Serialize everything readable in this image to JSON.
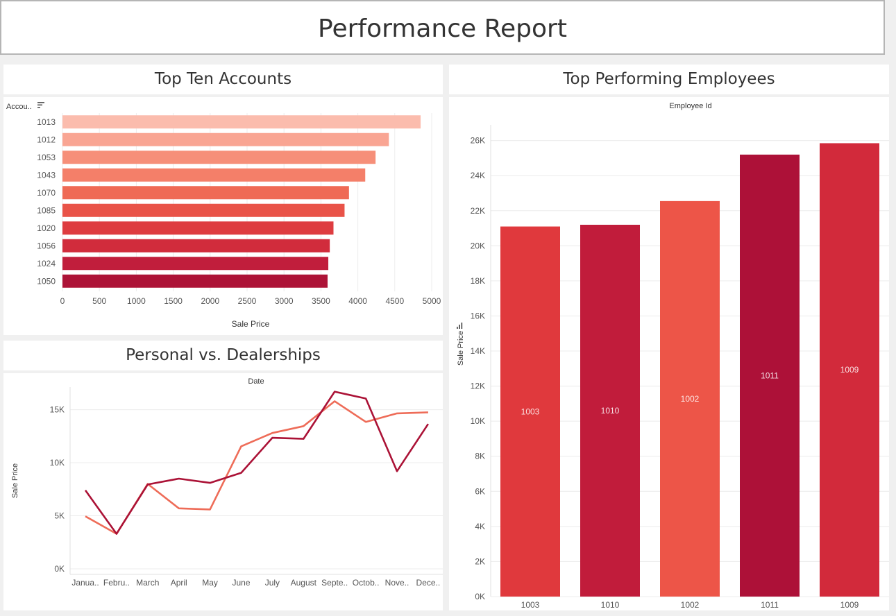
{
  "page_title": "Performance Report",
  "colors": {
    "ten_accounts": [
      "#fbbcad",
      "#f9a593",
      "#f68f79",
      "#f47f69",
      "#ef6a55",
      "#e95348",
      "#de3c40",
      "#d12c3c",
      "#c11e3c",
      "#ad1337"
    ],
    "employees": [
      "#e0393d",
      "#c11c3b",
      "#ed5548",
      "#ad1138",
      "#d22a3b"
    ],
    "line_personal": "#ee6c58",
    "line_dealership": "#ab1236",
    "grid": "#ececec"
  },
  "panels": {
    "top_accounts": {
      "title": "Top Ten Accounts",
      "row_header": "Accou.."
    },
    "personal_dealer": {
      "title": "Personal vs. Dealerships",
      "column_header": "Date"
    },
    "top_employees": {
      "title": "Top Performing Employees",
      "column_header": "Employee Id"
    }
  },
  "chart_data": [
    {
      "id": "top_accounts",
      "type": "bar",
      "orientation": "horizontal",
      "title": "Top Ten Accounts",
      "xlabel": "Sale Price",
      "ylabel": "Accou..",
      "categories": [
        "1013",
        "1012",
        "1053",
        "1043",
        "1070",
        "1085",
        "1020",
        "1056",
        "1024",
        "1050"
      ],
      "values": [
        4850,
        4420,
        4240,
        4100,
        3880,
        3820,
        3670,
        3620,
        3600,
        3590
      ],
      "xlim": [
        0,
        5000
      ],
      "xticks": [
        0,
        500,
        1000,
        1500,
        2000,
        2500,
        3000,
        3500,
        4000,
        4500,
        5000
      ],
      "grid": true
    },
    {
      "id": "personal_dealer",
      "type": "line",
      "title": "Personal vs. Dealerships",
      "xlabel": "Date",
      "ylabel": "Sale Price",
      "categories": [
        "Janua..",
        "Febru..",
        "March",
        "April",
        "May",
        "June",
        "July",
        "August",
        "Septe..",
        "Octob..",
        "Nove..",
        "Dece.."
      ],
      "ylim": [
        0,
        17000
      ],
      "yticks": [
        {
          "v": 0,
          "label": "0K"
        },
        {
          "v": 5000,
          "label": "5K"
        },
        {
          "v": 10000,
          "label": "10K"
        },
        {
          "v": 15000,
          "label": "15K"
        }
      ],
      "series": [
        {
          "values": [
            4950,
            3300,
            8000,
            5700,
            5600,
            11550,
            12800,
            13450,
            15800,
            13850,
            14650,
            14750
          ]
        },
        {
          "values": [
            7400,
            3300,
            7950,
            8500,
            8100,
            9050,
            12350,
            12250,
            16700,
            16050,
            9200,
            13650
          ]
        }
      ],
      "grid": true
    },
    {
      "id": "top_employees",
      "type": "bar",
      "title": "Top Performing Employees",
      "xlabel": "Employee Id",
      "ylabel": "Sale Price",
      "categories": [
        "1003",
        "1010",
        "1002",
        "1011",
        "1009"
      ],
      "values": [
        21100,
        21200,
        22550,
        25200,
        25850
      ],
      "data_labels": [
        "1003",
        "1010",
        "1002",
        "1011",
        "1009"
      ],
      "ylim": [
        0,
        26500
      ],
      "yticks": [
        {
          "v": 0,
          "label": "0K"
        },
        {
          "v": 2000,
          "label": "2K"
        },
        {
          "v": 4000,
          "label": "4K"
        },
        {
          "v": 6000,
          "label": "6K"
        },
        {
          "v": 8000,
          "label": "8K"
        },
        {
          "v": 10000,
          "label": "10K"
        },
        {
          "v": 12000,
          "label": "12K"
        },
        {
          "v": 14000,
          "label": "14K"
        },
        {
          "v": 16000,
          "label": "16K"
        },
        {
          "v": 18000,
          "label": "18K"
        },
        {
          "v": 20000,
          "label": "20K"
        },
        {
          "v": 22000,
          "label": "22K"
        },
        {
          "v": 24000,
          "label": "24K"
        },
        {
          "v": 26000,
          "label": "26K"
        }
      ],
      "grid": true
    }
  ]
}
